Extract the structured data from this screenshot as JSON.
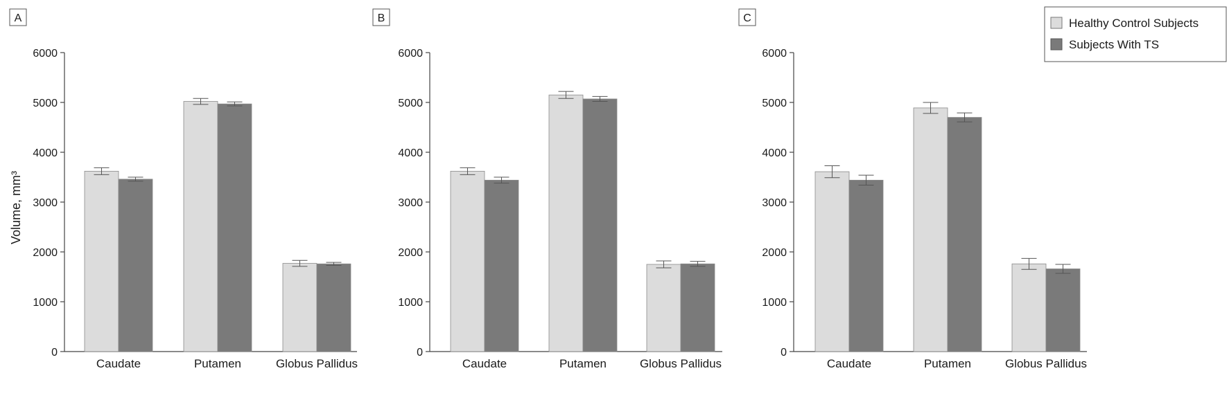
{
  "colors": {
    "control": "#dcdcdc",
    "ts": "#7a7a7a",
    "axis": "#444444",
    "bar_outline": "#8a8a8a"
  },
  "legend": {
    "entries": [
      {
        "label": "Healthy Control Subjects",
        "color": "#dcdcdc"
      },
      {
        "label": "Subjects With TS",
        "color": "#7a7a7a"
      }
    ],
    "placement": "top-right"
  },
  "ylabel": "Volume, mm³",
  "chart_data": [
    {
      "type": "bar",
      "panel": "A",
      "categories": [
        "Caudate",
        "Putamen",
        "Globus Pallidus"
      ],
      "ylim": [
        0,
        6000
      ],
      "yticks": [
        0,
        1000,
        2000,
        3000,
        4000,
        5000,
        6000
      ],
      "series": [
        {
          "name": "Healthy Control Subjects",
          "values": [
            3620,
            5020,
            1770
          ],
          "errors": [
            70,
            60,
            60
          ]
        },
        {
          "name": "Subjects With TS",
          "values": [
            3460,
            4970,
            1760
          ],
          "errors": [
            40,
            40,
            30
          ]
        }
      ]
    },
    {
      "type": "bar",
      "panel": "B",
      "categories": [
        "Caudate",
        "Putamen",
        "Globus Pallidus"
      ],
      "ylim": [
        0,
        6000
      ],
      "yticks": [
        0,
        1000,
        2000,
        3000,
        4000,
        5000,
        6000
      ],
      "series": [
        {
          "name": "Healthy Control Subjects",
          "values": [
            3620,
            5150,
            1750
          ],
          "errors": [
            70,
            70,
            70
          ]
        },
        {
          "name": "Subjects With TS",
          "values": [
            3440,
            5070,
            1760
          ],
          "errors": [
            60,
            50,
            50
          ]
        }
      ]
    },
    {
      "type": "bar",
      "panel": "C",
      "categories": [
        "Caudate",
        "Putamen",
        "Globus Pallidus"
      ],
      "ylim": [
        0,
        6000
      ],
      "yticks": [
        0,
        1000,
        2000,
        3000,
        4000,
        5000,
        6000
      ],
      "series": [
        {
          "name": "Healthy Control Subjects",
          "values": [
            3610,
            4890,
            1760
          ],
          "errors": [
            120,
            110,
            110
          ]
        },
        {
          "name": "Subjects With TS",
          "values": [
            3440,
            4700,
            1660
          ],
          "errors": [
            100,
            90,
            90
          ]
        }
      ]
    }
  ]
}
